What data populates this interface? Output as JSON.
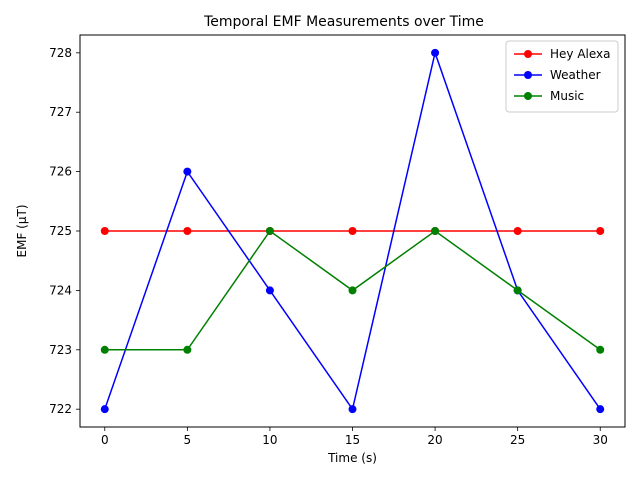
{
  "chart_data": {
    "type": "line",
    "title": "Temporal EMF Measurements over Time",
    "xlabel": "Time (s)",
    "ylabel": "EMF (µT)",
    "x": [
      0,
      5,
      10,
      15,
      20,
      25,
      30
    ],
    "xlim": [
      -1.5,
      31.5
    ],
    "ylim": [
      721.7,
      728.3
    ],
    "xticks": [
      0,
      5,
      10,
      15,
      20,
      25,
      30
    ],
    "yticks": [
      722,
      723,
      724,
      725,
      726,
      727,
      728
    ],
    "grid": false,
    "legend_position": "top-right",
    "series": [
      {
        "name": "Hey Alexa",
        "color": "#ff0000",
        "values": [
          725,
          725,
          725,
          725,
          725,
          725,
          725
        ]
      },
      {
        "name": "Weather",
        "color": "#0000ff",
        "values": [
          722,
          726,
          724,
          722,
          728,
          724,
          722
        ]
      },
      {
        "name": "Music",
        "color": "#008000",
        "values": [
          723,
          723,
          725,
          724,
          725,
          724,
          723
        ]
      }
    ]
  }
}
